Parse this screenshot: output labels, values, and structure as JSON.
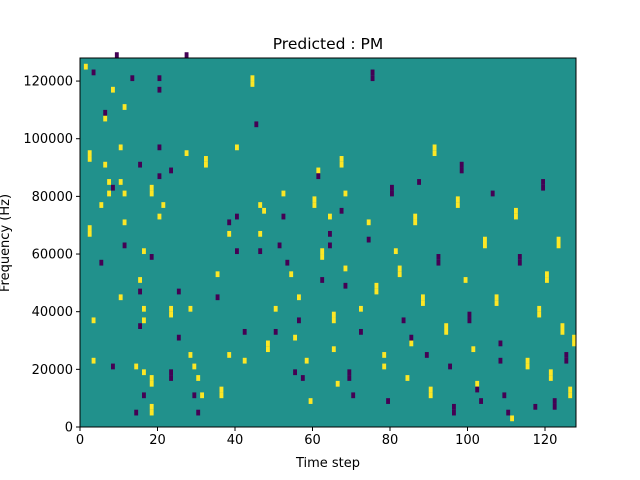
{
  "chart_data": {
    "type": "heatmap",
    "title": "Predicted : PM",
    "xlabel": "Time step",
    "ylabel": "Frequency (Hz)",
    "xlim": [
      0,
      128
    ],
    "ylim": [
      0,
      128000
    ],
    "xticks": [
      0,
      20,
      40,
      60,
      80,
      100,
      120
    ],
    "yticks": [
      0,
      20000,
      40000,
      60000,
      80000,
      100000,
      120000
    ],
    "xtick_labels": [
      "0",
      "20",
      "40",
      "60",
      "80",
      "100",
      "120"
    ],
    "ytick_labels": [
      "0",
      "20000",
      "40000",
      "60000",
      "80000",
      "100000",
      "120000"
    ],
    "grid": false,
    "legend": "none",
    "n_time_steps": 128,
    "n_freq_bins": 64,
    "freq_bin_hz": 2000,
    "colors": {
      "background": "#21918c",
      "low": "#440154",
      "high": "#fde725"
    },
    "background_value": 0.5,
    "cells": [
      [
        1,
        62,
        1
      ],
      [
        3,
        61,
        0
      ],
      [
        2,
        47,
        1
      ],
      [
        2,
        46,
        1
      ],
      [
        2,
        34,
        1
      ],
      [
        2,
        33,
        1
      ],
      [
        3,
        18,
        1
      ],
      [
        3,
        11,
        1
      ],
      [
        5,
        38,
        1
      ],
      [
        5,
        28,
        0
      ],
      [
        6,
        45,
        1
      ],
      [
        6,
        53,
        1
      ],
      [
        6,
        54,
        0
      ],
      [
        7,
        42,
        1
      ],
      [
        7,
        40,
        1
      ],
      [
        8,
        58,
        1
      ],
      [
        8,
        41,
        0
      ],
      [
        8,
        10,
        0
      ],
      [
        9,
        64,
        0
      ],
      [
        10,
        48,
        1
      ],
      [
        10,
        42,
        1
      ],
      [
        10,
        22,
        1
      ],
      [
        11,
        55,
        1
      ],
      [
        11,
        40,
        1
      ],
      [
        11,
        35,
        1
      ],
      [
        11,
        31,
        0
      ],
      [
        13,
        60,
        0
      ],
      [
        14,
        10,
        1
      ],
      [
        14,
        2,
        0
      ],
      [
        15,
        45,
        0
      ],
      [
        15,
        25,
        1
      ],
      [
        15,
        23,
        0
      ],
      [
        15,
        17,
        0
      ],
      [
        16,
        30,
        1
      ],
      [
        16,
        20,
        1
      ],
      [
        16,
        18,
        1
      ],
      [
        16,
        9,
        1
      ],
      [
        16,
        5,
        0
      ],
      [
        18,
        40,
        1
      ],
      [
        18,
        41,
        1
      ],
      [
        18,
        29,
        0
      ],
      [
        18,
        7,
        1
      ],
      [
        18,
        8,
        1
      ],
      [
        18,
        3,
        1
      ],
      [
        18,
        2,
        1
      ],
      [
        20,
        60,
        0
      ],
      [
        20,
        58,
        0
      ],
      [
        20,
        48,
        0
      ],
      [
        20,
        43,
        0
      ],
      [
        20,
        36,
        1
      ],
      [
        21,
        38,
        1
      ],
      [
        23,
        44,
        0
      ],
      [
        23,
        20,
        1
      ],
      [
        23,
        19,
        1
      ],
      [
        23,
        9,
        0
      ],
      [
        23,
        8,
        0
      ],
      [
        25,
        15,
        0
      ],
      [
        25,
        23,
        0
      ],
      [
        27,
        64,
        0
      ],
      [
        27,
        47,
        1
      ],
      [
        28,
        20,
        1
      ],
      [
        28,
        12,
        1
      ],
      [
        29,
        10,
        1
      ],
      [
        29,
        5,
        0
      ],
      [
        30,
        8,
        1
      ],
      [
        30,
        2,
        0
      ],
      [
        31,
        5,
        1
      ],
      [
        32,
        46,
        1
      ],
      [
        32,
        45,
        1
      ],
      [
        35,
        22,
        0
      ],
      [
        35,
        26,
        1
      ],
      [
        36,
        6,
        1
      ],
      [
        36,
        5,
        1
      ],
      [
        38,
        12,
        1
      ],
      [
        38,
        35,
        0
      ],
      [
        38,
        33,
        1
      ],
      [
        40,
        48,
        1
      ],
      [
        40,
        36,
        0
      ],
      [
        40,
        30,
        0
      ],
      [
        42,
        16,
        0
      ],
      [
        42,
        11,
        1
      ],
      [
        44,
        60,
        1
      ],
      [
        44,
        59,
        1
      ],
      [
        45,
        52,
        0
      ],
      [
        46,
        38,
        1
      ],
      [
        46,
        33,
        1
      ],
      [
        46,
        30,
        0
      ],
      [
        47,
        37,
        1
      ],
      [
        48,
        14,
        1
      ],
      [
        48,
        13,
        1
      ],
      [
        50,
        20,
        1
      ],
      [
        50,
        16,
        0
      ],
      [
        51,
        31,
        0
      ],
      [
        52,
        40,
        1
      ],
      [
        52,
        36,
        0
      ],
      [
        53,
        28,
        0
      ],
      [
        54,
        26,
        1
      ],
      [
        55,
        15,
        1
      ],
      [
        55,
        9,
        0
      ],
      [
        56,
        22,
        1
      ],
      [
        56,
        18,
        0
      ],
      [
        57,
        8,
        0
      ],
      [
        58,
        11,
        1
      ],
      [
        59,
        4,
        1
      ],
      [
        60,
        38,
        1
      ],
      [
        60,
        39,
        1
      ],
      [
        61,
        44,
        1
      ],
      [
        61,
        43,
        0
      ],
      [
        62,
        30,
        1
      ],
      [
        62,
        29,
        1
      ],
      [
        62,
        25,
        0
      ],
      [
        64,
        36,
        1
      ],
      [
        64,
        33,
        0
      ],
      [
        64,
        31,
        0
      ],
      [
        65,
        19,
        1
      ],
      [
        65,
        18,
        1
      ],
      [
        65,
        13,
        1
      ],
      [
        66,
        7,
        1
      ],
      [
        67,
        45,
        1
      ],
      [
        67,
        46,
        1
      ],
      [
        67,
        37,
        0
      ],
      [
        68,
        40,
        1
      ],
      [
        68,
        27,
        1
      ],
      [
        68,
        24,
        0
      ],
      [
        69,
        9,
        0
      ],
      [
        69,
        8,
        0
      ],
      [
        70,
        5,
        0
      ],
      [
        72,
        20,
        1
      ],
      [
        72,
        16,
        0
      ],
      [
        74,
        35,
        1
      ],
      [
        74,
        32,
        0
      ],
      [
        75,
        60,
        0
      ],
      [
        75,
        61,
        0
      ],
      [
        76,
        24,
        1
      ],
      [
        76,
        23,
        1
      ],
      [
        78,
        10,
        1
      ],
      [
        78,
        12,
        1
      ],
      [
        79,
        4,
        0
      ],
      [
        80,
        40,
        0
      ],
      [
        80,
        41,
        0
      ],
      [
        81,
        30,
        1
      ],
      [
        82,
        27,
        1
      ],
      [
        82,
        26,
        1
      ],
      [
        83,
        18,
        0
      ],
      [
        84,
        8,
        1
      ],
      [
        85,
        14,
        1
      ],
      [
        85,
        15,
        0
      ],
      [
        86,
        36,
        1
      ],
      [
        86,
        35,
        1
      ],
      [
        87,
        42,
        0
      ],
      [
        88,
        22,
        1
      ],
      [
        88,
        21,
        1
      ],
      [
        89,
        12,
        0
      ],
      [
        90,
        6,
        1
      ],
      [
        90,
        5,
        1
      ],
      [
        91,
        48,
        1
      ],
      [
        91,
        47,
        1
      ],
      [
        92,
        28,
        0
      ],
      [
        92,
        29,
        0
      ],
      [
        94,
        16,
        1
      ],
      [
        94,
        17,
        1
      ],
      [
        95,
        10,
        0
      ],
      [
        96,
        3,
        0
      ],
      [
        96,
        2,
        0
      ],
      [
        97,
        38,
        1
      ],
      [
        97,
        39,
        1
      ],
      [
        98,
        44,
        0
      ],
      [
        98,
        45,
        0
      ],
      [
        99,
        25,
        1
      ],
      [
        100,
        19,
        0
      ],
      [
        100,
        18,
        0
      ],
      [
        101,
        13,
        1
      ],
      [
        102,
        7,
        1
      ],
      [
        102,
        6,
        0
      ],
      [
        103,
        4,
        0
      ],
      [
        104,
        32,
        1
      ],
      [
        104,
        31,
        1
      ],
      [
        106,
        40,
        0
      ],
      [
        107,
        22,
        1
      ],
      [
        107,
        21,
        1
      ],
      [
        108,
        14,
        0
      ],
      [
        108,
        11,
        0
      ],
      [
        109,
        5,
        0
      ],
      [
        110,
        2,
        0
      ],
      [
        111,
        1,
        1
      ],
      [
        112,
        37,
        1
      ],
      [
        112,
        36,
        1
      ],
      [
        113,
        28,
        0
      ],
      [
        113,
        29,
        0
      ],
      [
        115,
        11,
        1
      ],
      [
        115,
        10,
        1
      ],
      [
        117,
        3,
        0
      ],
      [
        118,
        20,
        1
      ],
      [
        118,
        19,
        1
      ],
      [
        119,
        42,
        0
      ],
      [
        119,
        41,
        0
      ],
      [
        120,
        25,
        1
      ],
      [
        120,
        26,
        1
      ],
      [
        121,
        8,
        1
      ],
      [
        121,
        9,
        1
      ],
      [
        122,
        4,
        0
      ],
      [
        122,
        3,
        0
      ],
      [
        123,
        31,
        1
      ],
      [
        123,
        32,
        1
      ],
      [
        124,
        17,
        1
      ],
      [
        124,
        16,
        1
      ],
      [
        125,
        12,
        0
      ],
      [
        125,
        11,
        0
      ],
      [
        126,
        6,
        1
      ],
      [
        126,
        5,
        1
      ],
      [
        127,
        15,
        1
      ],
      [
        127,
        14,
        1
      ]
    ]
  }
}
